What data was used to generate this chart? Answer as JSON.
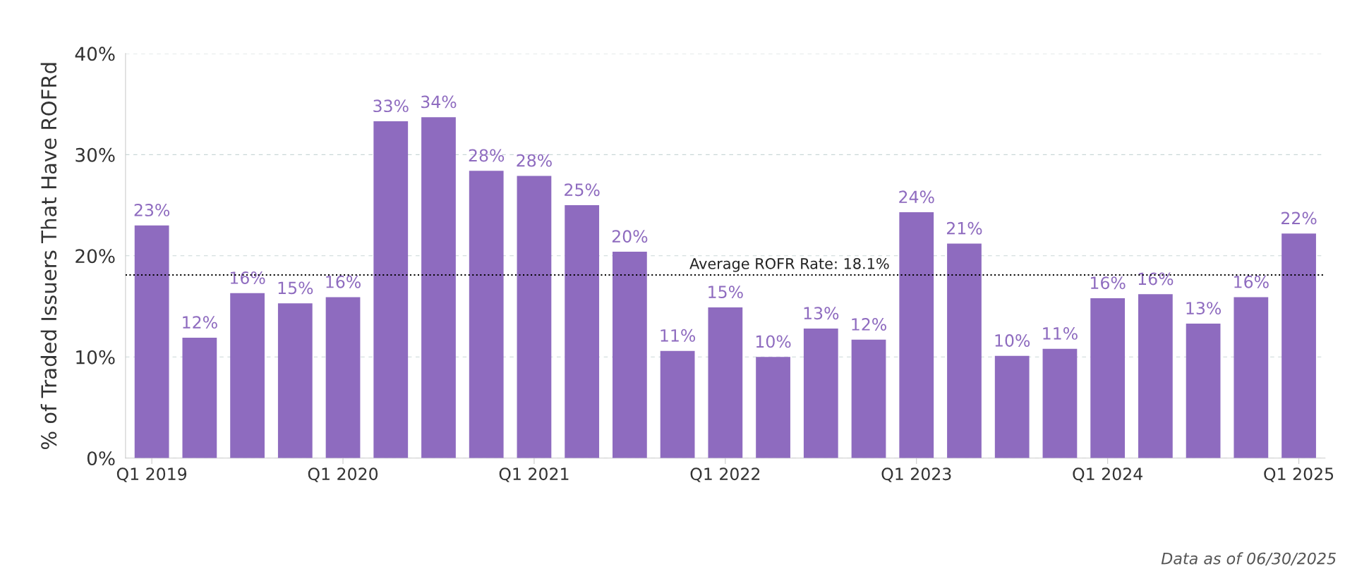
{
  "chart_data": {
    "type": "bar",
    "ylabel": "% of Traded Issuers That Have ROFRd",
    "categories": [
      "Q1 2019",
      null,
      null,
      null,
      "Q1 2020",
      null,
      null,
      null,
      "Q1 2021",
      null,
      null,
      null,
      "Q1 2022",
      null,
      null,
      null,
      "Q1 2023",
      null,
      null,
      null,
      "Q1 2024",
      null,
      null,
      null,
      "Q1 2025"
    ],
    "values": [
      23.0,
      11.9,
      16.3,
      15.3,
      15.9,
      33.3,
      33.7,
      28.4,
      27.9,
      25.0,
      20.4,
      10.6,
      14.9,
      10.0,
      12.8,
      11.7,
      24.3,
      21.2,
      10.1,
      10.8,
      15.8,
      16.2,
      13.3,
      15.9,
      22.2
    ],
    "value_labels": [
      "23%",
      "12%",
      "16%",
      "15%",
      "16%",
      "33%",
      "34%",
      "28%",
      "28%",
      "25%",
      "20%",
      "11%",
      "15%",
      "10%",
      "13%",
      "12%",
      "24%",
      "21%",
      "10%",
      "11%",
      "16%",
      "16%",
      "13%",
      "16%",
      "22%"
    ],
    "color": "#8e6bbf",
    "ylim": [
      0,
      40
    ],
    "yticks": [
      {
        "value": 0,
        "label": "0%"
      },
      {
        "value": 10,
        "label": "10%"
      },
      {
        "value": 20,
        "label": "20%"
      },
      {
        "value": 30,
        "label": "30%"
      },
      {
        "value": 40,
        "label": "40%"
      }
    ],
    "grid": "y",
    "ref_lines": [
      {
        "axis": "y",
        "value": 18.1,
        "label": "Average ROFR Rate: 18.1%",
        "color": "#000000",
        "line_style": "dotted"
      }
    ],
    "annotations": [
      "Data as of 06/30/2025"
    ]
  }
}
